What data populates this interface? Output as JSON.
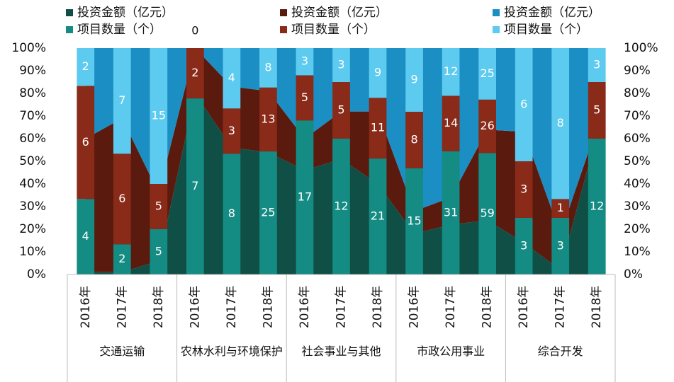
{
  "chart_data": {
    "type": "combo",
    "stacking": "percent",
    "categories": [
      "2016年",
      "2017年",
      "2018年",
      "2016年",
      "2017年",
      "2018年",
      "2016年",
      "2017年",
      "2018年",
      "2016年",
      "2017年",
      "2018年",
      "2016年",
      "2017年",
      "2018年"
    ],
    "groups": [
      "交通运输",
      "农林水利与环境保护",
      "社会事业与其他",
      "市政公用事业",
      "综合开发"
    ],
    "series": [
      {
        "name": "投资金额（亿元）",
        "type": "area",
        "color": "#0f4f46",
        "values": [
          1,
          1,
          6,
          80,
          56,
          54,
          46,
          51,
          40,
          18,
          22,
          24,
          14,
          2,
          62
        ]
      },
      {
        "name": "投资金额（亿元）",
        "type": "area",
        "color": "#5a1a0e",
        "values": [
          59,
          68,
          30,
          20,
          27,
          27,
          14,
          21,
          32,
          10,
          12,
          40,
          49,
          16,
          3
        ]
      },
      {
        "name": "投资金额（亿元）",
        "type": "area",
        "color": "#1b8ec3",
        "values": [
          40,
          31,
          64,
          0,
          17,
          19,
          40,
          28,
          28,
          72,
          66,
          36,
          37,
          82,
          35
        ]
      },
      {
        "name": "项目数量（个）",
        "type": "bar",
        "color": "#148b83",
        "values": [
          4,
          2,
          5,
          7,
          8,
          25,
          17,
          12,
          21,
          15,
          31,
          59,
          3,
          3,
          12
        ]
      },
      {
        "name": "项目数量（个）",
        "type": "bar",
        "color": "#8a2a18",
        "values": [
          6,
          6,
          5,
          2,
          3,
          13,
          5,
          5,
          11,
          8,
          14,
          26,
          3,
          1,
          5
        ]
      },
      {
        "name": "项目数量（个）",
        "type": "bar",
        "color": "#5ccbef",
        "values": [
          2,
          7,
          15,
          0,
          4,
          8,
          3,
          3,
          9,
          9,
          12,
          25,
          6,
          8,
          3
        ]
      }
    ],
    "ylim": [
      0,
      100
    ],
    "yticks": [
      {
        "value": 0,
        "label": "0%"
      },
      {
        "value": 10,
        "label": "10%"
      },
      {
        "value": 20,
        "label": "20%"
      },
      {
        "value": 30,
        "label": "30%"
      },
      {
        "value": 40,
        "label": "40%"
      },
      {
        "value": 50,
        "label": "50%"
      },
      {
        "value": 60,
        "label": "60%"
      },
      {
        "value": 70,
        "label": "70%"
      },
      {
        "value": 80,
        "label": "80%"
      },
      {
        "value": 90,
        "label": "90%"
      },
      {
        "value": 100,
        "label": "100%"
      }
    ],
    "y2lim": [
      0,
      100
    ],
    "y2ticks": [
      {
        "value": 0,
        "label": "0%"
      },
      {
        "value": 10,
        "label": "10%"
      },
      {
        "value": 20,
        "label": "20%"
      },
      {
        "value": 30,
        "label": "30%"
      },
      {
        "value": 40,
        "label": "40%"
      },
      {
        "value": 50,
        "label": "50%"
      },
      {
        "value": 60,
        "label": "60%"
      },
      {
        "value": 70,
        "label": "70%"
      },
      {
        "value": 80,
        "label": "80%"
      },
      {
        "value": 90,
        "label": "90%"
      },
      {
        "value": 100,
        "label": "100%"
      }
    ]
  }
}
